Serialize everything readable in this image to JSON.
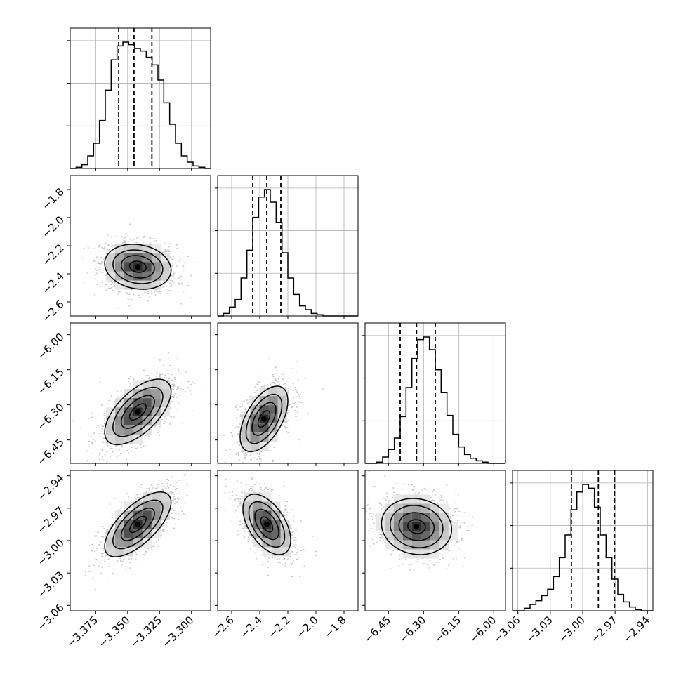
{
  "chart_data": {
    "type": "corner",
    "grid": true,
    "variables": [
      {
        "range": [
          -3.395,
          -3.285
        ],
        "ticks": [
          -3.375,
          -3.35,
          -3.325,
          -3.3
        ],
        "tick_labels": [
          "−3.375",
          "−3.350",
          "−3.325",
          "−3.300"
        ],
        "hist_y": [
          -3.357,
          -3.345,
          -3.331
        ],
        "center": -3.342,
        "sigma": 0.013
      },
      {
        "range": [
          -2.7,
          -1.7
        ],
        "ticks": [
          -2.6,
          -2.4,
          -2.2,
          -2.0,
          -1.8
        ],
        "tick_labels": [
          "−2.6",
          "−2.4",
          "−2.2",
          "−2.0",
          "−1.8"
        ],
        "hist_y": [
          -2.45,
          -2.35,
          -2.25
        ],
        "center": -2.35,
        "sigma": 0.095
      },
      {
        "range": [
          -6.55,
          -5.95
        ],
        "ticks": [
          -6.45,
          -6.3,
          -6.15,
          -6.0
        ],
        "tick_labels": [
          "−6.45",
          "−6.30",
          "−6.15",
          "−6.00"
        ],
        "hist_y": [
          -6.4,
          -6.33,
          -6.25
        ],
        "center": -6.33,
        "sigma": 0.075
      },
      {
        "range": [
          -3.065,
          -2.935
        ],
        "ticks": [
          -3.06,
          -3.03,
          -3.0,
          -2.97,
          -2.94
        ],
        "tick_labels": [
          "−3.06",
          "−3.03",
          "−3.00",
          "−2.97",
          "−2.94"
        ],
        "hist_y": [
          -3.0105,
          -2.9855,
          -2.9705
        ],
        "center": -2.987,
        "sigma": 0.017
      }
    ],
    "quantiles": [
      0.16,
      0.5,
      0.84
    ],
    "histograms": [
      [
        0,
        0.01,
        0.03,
        0.1,
        0.2,
        0.38,
        0.62,
        0.86,
        0.97,
        1.0,
        0.98,
        0.95,
        0.93,
        0.88,
        0.82,
        0.7,
        0.52,
        0.35,
        0.2,
        0.1,
        0.05,
        0.02,
        0.01,
        0
      ],
      [
        0,
        0.02,
        0.07,
        0.13,
        0.3,
        0.52,
        0.78,
        0.94,
        1.0,
        0.9,
        0.74,
        0.5,
        0.3,
        0.17,
        0.08,
        0.05,
        0.02,
        0.01,
        0,
        0,
        0,
        0,
        0,
        0
      ],
      [
        0,
        0,
        0.01,
        0.05,
        0.11,
        0.2,
        0.37,
        0.6,
        0.83,
        0.98,
        1.0,
        0.9,
        0.74,
        0.56,
        0.38,
        0.23,
        0.13,
        0.07,
        0.04,
        0.02,
        0.01,
        0,
        0,
        0
      ],
      [
        0,
        0,
        0.02,
        0.05,
        0.08,
        0.12,
        0.17,
        0.27,
        0.42,
        0.6,
        0.8,
        0.94,
        1.0,
        0.97,
        0.82,
        0.6,
        0.42,
        0.25,
        0.13,
        0.07,
        0.03,
        0.01,
        0,
        0
      ]
    ],
    "panels_2d": [
      {
        "row": 1,
        "col": 0,
        "center": [
          -3.342,
          -2.35
        ],
        "sigma": [
          0.013,
          0.08
        ],
        "rho": -0.15
      },
      {
        "row": 2,
        "col": 0,
        "center": [
          -3.342,
          -6.33
        ],
        "sigma": [
          0.013,
          0.07
        ],
        "rho": 0.62
      },
      {
        "row": 2,
        "col": 1,
        "center": [
          -2.37,
          -6.36
        ],
        "sigma": [
          0.085,
          0.07
        ],
        "rho": 0.55
      },
      {
        "row": 3,
        "col": 0,
        "center": [
          -3.342,
          -2.985
        ],
        "sigma": [
          0.013,
          0.015
        ],
        "rho": 0.68
      },
      {
        "row": 3,
        "col": 1,
        "center": [
          -2.35,
          -2.985
        ],
        "sigma": [
          0.085,
          0.014
        ],
        "rho": -0.52
      },
      {
        "row": 3,
        "col": 2,
        "center": [
          -6.33,
          -2.987
        ],
        "sigma": [
          0.075,
          0.013
        ],
        "rho": -0.1
      }
    ],
    "contour_levels_sigma": [
      0.5,
      1.0,
      1.5,
      2.0
    ],
    "colors": {
      "line": "#000000",
      "grid": "#b0b0b0",
      "points": "#555555",
      "density_dark": "#000000"
    }
  }
}
